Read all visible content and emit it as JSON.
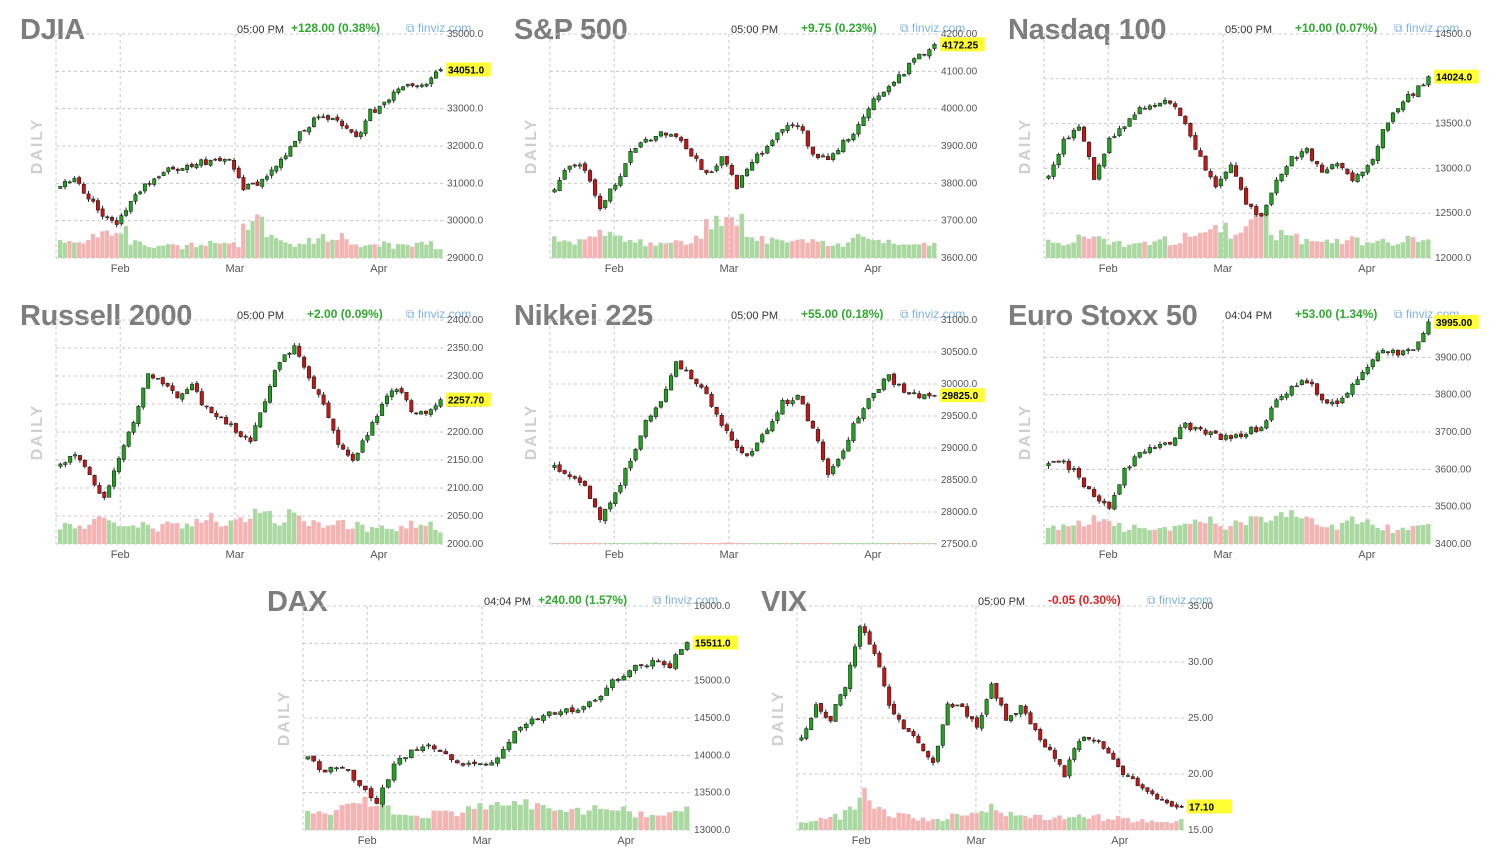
{
  "colors": {
    "up": "#1fa31f",
    "down": "#c81414",
    "vol_up": "#a9d9a0",
    "vol_down": "#f4b4b4",
    "grid": "#c8c8c8",
    "last_bg": "#ffff33",
    "chg_up": "#2ea82e",
    "chg_down": "#e02020"
  },
  "chart_data": [
    {
      "type": "candlestick",
      "title": "DJIA",
      "time": "05:00 PM",
      "change": "+128.00 (0.38%)",
      "change_dir": "up",
      "source": "finviz.com",
      "side_label": "DAILY",
      "yticks": [
        "35000.0",
        "34000.0",
        "33000.0",
        "32000.0",
        "31000.0",
        "30000.0",
        "29000.0"
      ],
      "ylim": [
        29000,
        35000
      ],
      "xticks": [
        "Feb",
        "Mar",
        "Apr"
      ],
      "last": "34051.0",
      "last_value": 34051,
      "path": [
        30900,
        31100,
        30600,
        30200,
        29900,
        30500,
        30900,
        31200,
        31400,
        31450,
        31550,
        31600,
        31700,
        30900,
        31000,
        31400,
        31800,
        32300,
        32700,
        32800,
        32600,
        32200,
        32900,
        33100,
        33500,
        33700,
        33600,
        34051
      ],
      "volume": [
        0.4,
        0.3,
        0.45,
        0.5,
        0.7,
        0.35,
        0.3,
        0.3,
        0.25,
        0.3,
        0.35,
        0.4,
        0.3,
        0.8,
        0.95,
        0.5,
        0.35,
        0.3,
        0.4,
        0.45,
        0.5,
        0.3,
        0.35,
        0.3,
        0.25,
        0.3,
        0.35,
        0.25
      ]
    },
    {
      "type": "candlestick",
      "title": "S&P 500",
      "time": "05:00 PM",
      "change": "+9.75 (0.23%)",
      "change_dir": "up",
      "source": "finviz.com",
      "side_label": "DAILY",
      "yticks": [
        "4200.00",
        "4100.00",
        "4000.00",
        "3900.00",
        "3800.00",
        "3700.00",
        "3600.00"
      ],
      "ylim": [
        3600,
        4200
      ],
      "xticks": [
        "Feb",
        "Mar",
        "Apr"
      ],
      "last": "4172.25",
      "last_value": 4172.25,
      "path": [
        3780,
        3850,
        3840,
        3730,
        3800,
        3880,
        3910,
        3930,
        3920,
        3880,
        3820,
        3870,
        3790,
        3860,
        3900,
        3950,
        3960,
        3880,
        3860,
        3910,
        3950,
        4020,
        4060,
        4100,
        4140,
        4172
      ],
      "volume": [
        0.4,
        0.35,
        0.5,
        0.6,
        0.45,
        0.4,
        0.3,
        0.3,
        0.35,
        0.4,
        0.8,
        0.9,
        0.85,
        0.5,
        0.4,
        0.45,
        0.5,
        0.4,
        0.35,
        0.3,
        0.45,
        0.4,
        0.35,
        0.3,
        0.3,
        0.28
      ]
    },
    {
      "type": "candlestick",
      "title": "Nasdaq 100",
      "time": "05:00 PM",
      "change": "+10.00 (0.07%)",
      "change_dir": "up",
      "source": "finviz.com",
      "side_label": "DAILY",
      "yticks": [
        "14500.0",
        "14000.0",
        "13500.0",
        "13000.0",
        "12500.0",
        "12000.0"
      ],
      "ylim": [
        12000,
        14500
      ],
      "xticks": [
        "Feb",
        "Mar",
        "Apr"
      ],
      "last": "14024.0",
      "last_value": 14024,
      "path": [
        12900,
        13300,
        13500,
        12900,
        13300,
        13500,
        13650,
        13700,
        13750,
        13500,
        13100,
        12800,
        13050,
        12600,
        12450,
        12900,
        13100,
        13200,
        12950,
        13050,
        12850,
        13000,
        13400,
        13700,
        13850,
        14024
      ],
      "volume": [
        0.35,
        0.3,
        0.45,
        0.5,
        0.35,
        0.3,
        0.35,
        0.4,
        0.35,
        0.45,
        0.6,
        0.65,
        0.5,
        0.7,
        0.9,
        0.5,
        0.45,
        0.4,
        0.35,
        0.4,
        0.45,
        0.3,
        0.35,
        0.3,
        0.4,
        0.35
      ]
    },
    {
      "type": "candlestick",
      "title": "Russell 2000",
      "time": "05:00 PM",
      "change": "+2.00 (0.09%)",
      "change_dir": "up",
      "source": "finviz.com",
      "side_label": "DAILY",
      "yticks": [
        "2400.00",
        "2350.00",
        "2300.00",
        "2250.00",
        "2200.00",
        "2150.00",
        "2100.00",
        "2050.00",
        "2000.00"
      ],
      "ylim": [
        2000,
        2400
      ],
      "xticks": [
        "Feb",
        "Mar",
        "Apr"
      ],
      "last": "2257.70",
      "last_value": 2257.7,
      "path": [
        2140,
        2160,
        2120,
        2080,
        2150,
        2220,
        2300,
        2290,
        2260,
        2280,
        2240,
        2230,
        2200,
        2180,
        2260,
        2330,
        2350,
        2300,
        2250,
        2180,
        2150,
        2200,
        2250,
        2280,
        2240,
        2230,
        2257.7
      ],
      "volume": [
        0.4,
        0.35,
        0.5,
        0.55,
        0.35,
        0.4,
        0.35,
        0.45,
        0.4,
        0.5,
        0.55,
        0.45,
        0.5,
        0.75,
        0.6,
        0.45,
        0.65,
        0.5,
        0.45,
        0.55,
        0.4,
        0.35,
        0.4,
        0.35,
        0.45,
        0.4,
        0.3
      ]
    },
    {
      "type": "candlestick",
      "title": "Nikkei 225",
      "time": "05:00 PM",
      "change": "+55.00 (0.18%)",
      "change_dir": "up",
      "source": "finviz.com",
      "side_label": "DAILY",
      "yticks": [
        "31000.0",
        "30500.0",
        "30000.0",
        "29500.0",
        "29000.0",
        "28500.0",
        "28000.0",
        "27500.0"
      ],
      "ylim": [
        27500,
        31000
      ],
      "xticks": [
        "Feb",
        "Mar",
        "Apr"
      ],
      "last": "29825.0",
      "last_value": 29825,
      "path": [
        28700,
        28600,
        28400,
        27900,
        28300,
        28800,
        29400,
        29700,
        30300,
        30100,
        29800,
        29400,
        29000,
        28900,
        29300,
        29700,
        29800,
        29300,
        28600,
        29000,
        29500,
        29900,
        30100,
        29900,
        29800,
        29825
      ],
      "volume": [
        0.02,
        0.02,
        0.03,
        0.02,
        0.02,
        0.02,
        0.03,
        0.02,
        0.02,
        0.02,
        0.02,
        0.03,
        0.02,
        0.02,
        0.02,
        0.02,
        0.02,
        0.02,
        0.02,
        0.02,
        0.02,
        0.02,
        0.02,
        0.02,
        0.02,
        0.02
      ]
    },
    {
      "type": "candlestick",
      "title": "Euro Stoxx 50",
      "time": "04:04 PM",
      "change": "+53.00 (1.34%)",
      "change_dir": "up",
      "source": "finviz.com",
      "side_label": "DAILY",
      "yticks": [
        "3900.00",
        "3800.00",
        "3700.00",
        "3600.00",
        "3500.00",
        "3400.00"
      ],
      "ylim": [
        3400,
        4000
      ],
      "xticks": [
        "Feb",
        "Mar",
        "Apr"
      ],
      "last": "3995.00",
      "last_value": 3995,
      "path": [
        3610,
        3620,
        3580,
        3520,
        3500,
        3600,
        3640,
        3660,
        3670,
        3720,
        3700,
        3690,
        3680,
        3700,
        3710,
        3780,
        3820,
        3840,
        3790,
        3770,
        3820,
        3880,
        3920,
        3910,
        3920,
        3995
      ],
      "volume": [
        0.35,
        0.4,
        0.45,
        0.55,
        0.5,
        0.35,
        0.3,
        0.4,
        0.35,
        0.45,
        0.5,
        0.4,
        0.45,
        0.55,
        0.5,
        0.6,
        0.75,
        0.55,
        0.45,
        0.4,
        0.5,
        0.45,
        0.35,
        0.3,
        0.35,
        0.4
      ]
    },
    {
      "type": "candlestick",
      "title": "DAX",
      "time": "04:04 PM",
      "change": "+240.00 (1.57%)",
      "change_dir": "up",
      "source": "finviz.com",
      "side_label": "DAILY",
      "yticks": [
        "16000.0",
        "15500.0",
        "15000.0",
        "14500.0",
        "14000.0",
        "13500.0",
        "13000.0"
      ],
      "ylim": [
        13000,
        16000
      ],
      "xticks": [
        "Feb",
        "Mar",
        "Apr"
      ],
      "last": "15511.0",
      "last_value": 15511,
      "path": [
        13950,
        13800,
        13850,
        13600,
        13400,
        13850,
        14050,
        14100,
        14000,
        13900,
        13850,
        13950,
        14300,
        14500,
        14550,
        14600,
        14650,
        14800,
        15050,
        15200,
        15250,
        15200,
        15511
      ],
      "volume": [
        0.35,
        0.4,
        0.5,
        0.6,
        0.55,
        0.35,
        0.3,
        0.35,
        0.4,
        0.5,
        0.55,
        0.6,
        0.7,
        0.55,
        0.5,
        0.45,
        0.4,
        0.5,
        0.45,
        0.35,
        0.3,
        0.35,
        0.5
      ]
    },
    {
      "type": "candlestick",
      "title": "VIX",
      "time": "05:00 PM",
      "change": "-0.05 (0.30%)",
      "change_dir": "down",
      "source": "finviz.com",
      "side_label": "DAILY",
      "yticks": [
        "35.00",
        "30.00",
        "25.00",
        "20.00",
        "15.00"
      ],
      "ylim": [
        15,
        35
      ],
      "xticks": [
        "Feb",
        "Mar",
        "Apr"
      ],
      "last": "17.10",
      "last_value": 17.1,
      "path": [
        23,
        26,
        25,
        28,
        33,
        31,
        26,
        24,
        23,
        21,
        26,
        26,
        24,
        28,
        25,
        26,
        24,
        22,
        20,
        23,
        23,
        22,
        20,
        19,
        18,
        17.5,
        17.1
      ],
      "volume": [
        0.2,
        0.25,
        0.3,
        0.45,
        0.8,
        0.55,
        0.35,
        0.3,
        0.25,
        0.2,
        0.3,
        0.35,
        0.4,
        0.5,
        0.35,
        0.3,
        0.3,
        0.25,
        0.3,
        0.35,
        0.3,
        0.25,
        0.25,
        0.2,
        0.2,
        0.2,
        0.2
      ]
    }
  ]
}
